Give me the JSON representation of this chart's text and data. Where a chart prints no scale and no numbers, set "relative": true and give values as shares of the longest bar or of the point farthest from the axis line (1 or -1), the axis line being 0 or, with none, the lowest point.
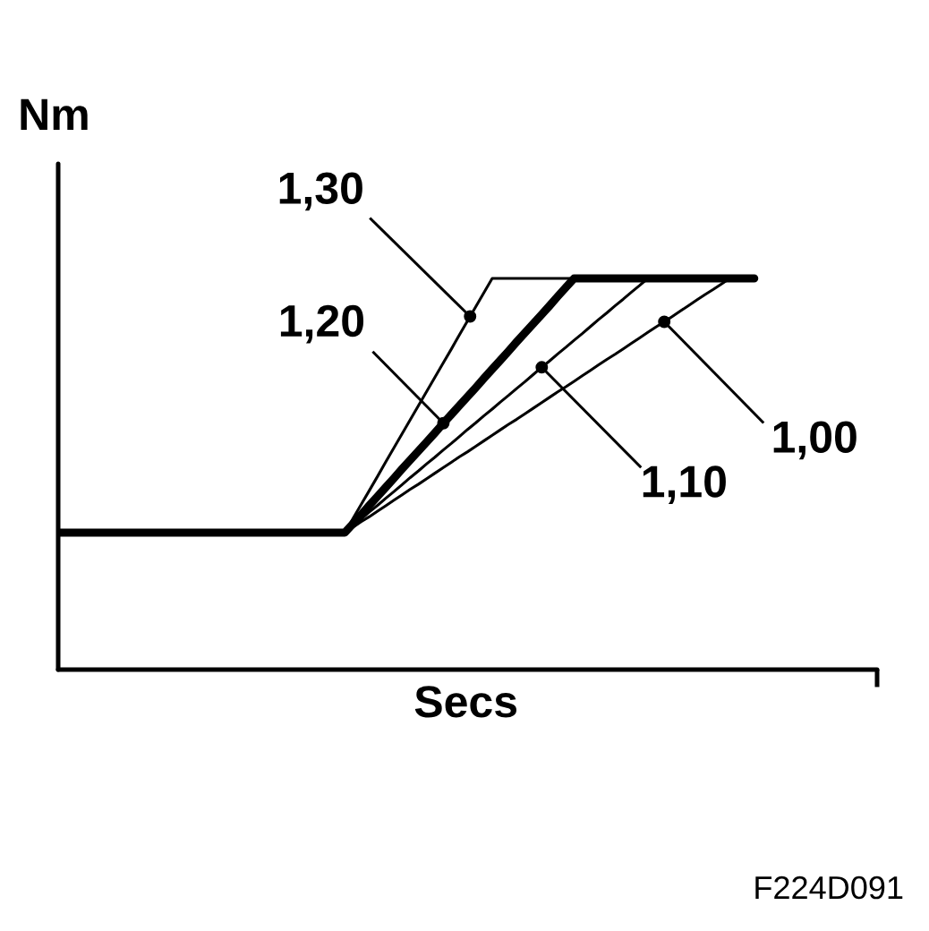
{
  "chart_data": {
    "type": "line",
    "relative": true,
    "xlabel": "Secs",
    "ylabel": "Nm",
    "line_style": "solid",
    "categories": [
      null,
      null,
      null,
      null,
      null,
      null,
      null,
      null,
      null,
      null,
      null,
      null,
      null,
      null,
      null,
      null,
      null,
      null,
      null,
      null,
      null,
      null,
      null,
      null,
      null,
      null,
      null,
      null,
      null,
      null,
      null,
      null,
      null,
      null,
      null,
      null,
      null,
      null,
      null,
      null,
      null,
      null,
      null,
      null,
      null,
      null,
      null,
      null,
      null,
      null,
      null,
      null,
      null,
      null,
      null,
      null,
      null,
      null,
      null,
      null,
      null,
      null,
      null,
      null,
      null,
      null,
      null,
      null,
      null,
      null,
      null,
      null,
      null,
      null,
      null,
      null,
      null,
      null,
      null,
      null,
      null,
      null,
      null,
      null,
      null,
      null,
      null,
      null,
      null,
      null,
      null,
      null,
      null,
      null,
      null,
      null,
      null,
      null,
      null,
      null,
      null
    ],
    "series": [
      {
        "name": "1,30",
        "color": "#000000",
        "values": [
          null,
          null,
          null,
          null,
          null,
          null,
          null,
          null,
          null,
          null,
          null,
          null,
          null,
          null,
          null,
          null,
          null,
          null,
          null,
          null,
          null,
          null,
          null,
          null,
          null,
          null,
          null,
          null,
          null,
          null,
          null,
          null,
          null,
          null,
          null,
          0.35,
          0.386,
          0.422,
          0.458,
          0.494,
          0.531,
          0.567,
          0.603,
          0.639,
          0.675,
          0.711,
          0.747,
          0.783,
          0.819,
          0.856,
          0.892,
          0.928,
          0.964,
          1,
          1,
          1,
          1,
          1,
          1,
          1,
          1,
          1,
          1,
          1,
          null,
          null,
          null,
          null,
          null,
          null,
          null,
          null,
          null,
          null,
          null,
          null,
          null,
          null,
          null,
          null,
          null,
          null,
          null,
          null,
          null,
          null,
          null,
          null,
          null,
          null,
          null,
          null,
          null,
          null,
          null,
          null,
          null,
          null,
          null,
          null,
          null
        ]
      },
      {
        "name": "1,20",
        "color": "#000000",
        "values": [
          0.35,
          0.35,
          0.35,
          0.35,
          0.35,
          0.35,
          0.35,
          0.35,
          0.35,
          0.35,
          0.35,
          0.35,
          0.35,
          0.35,
          0.35,
          0.35,
          0.35,
          0.35,
          0.35,
          0.35,
          0.35,
          0.35,
          0.35,
          0.35,
          0.35,
          0.35,
          0.35,
          0.35,
          0.35,
          0.35,
          0.35,
          0.35,
          0.35,
          0.35,
          0.35,
          0.35,
          0.373,
          0.396,
          0.42,
          0.443,
          0.466,
          0.489,
          0.513,
          0.536,
          0.559,
          0.582,
          0.605,
          0.629,
          0.652,
          0.675,
          0.698,
          0.721,
          0.745,
          0.768,
          0.791,
          0.814,
          0.838,
          0.861,
          0.884,
          0.907,
          0.93,
          0.954,
          0.977,
          1,
          1,
          1,
          1,
          1,
          1,
          1,
          1,
          1,
          1,
          1,
          1,
          1,
          1,
          1,
          1,
          1,
          1,
          1,
          1,
          1,
          1,
          1,
          null,
          null,
          null,
          null,
          null,
          null,
          null,
          null,
          null,
          null,
          null,
          null,
          null,
          null,
          null
        ]
      },
      {
        "name": "1,10",
        "color": "#000000",
        "values": [
          null,
          null,
          null,
          null,
          null,
          null,
          null,
          null,
          null,
          null,
          null,
          null,
          null,
          null,
          null,
          null,
          null,
          null,
          null,
          null,
          null,
          null,
          null,
          null,
          null,
          null,
          null,
          null,
          null,
          null,
          null,
          null,
          null,
          null,
          null,
          0.35,
          0.368,
          0.385,
          0.403,
          0.42,
          0.438,
          0.455,
          0.473,
          0.491,
          0.508,
          0.526,
          0.543,
          0.561,
          0.578,
          0.596,
          0.614,
          0.631,
          0.649,
          0.666,
          0.684,
          0.701,
          0.719,
          0.736,
          0.754,
          0.772,
          0.789,
          0.807,
          0.824,
          0.842,
          0.859,
          0.877,
          0.895,
          0.912,
          0.93,
          0.947,
          0.965,
          0.982,
          1,
          null,
          null,
          null,
          null,
          null,
          null,
          null,
          null,
          null,
          null,
          null,
          null,
          null,
          null,
          null,
          null,
          null,
          null,
          null,
          null,
          null,
          null,
          null,
          null,
          null,
          null,
          null,
          null
        ]
      },
      {
        "name": "1,00",
        "color": "#000000",
        "values": [
          null,
          null,
          null,
          null,
          null,
          null,
          null,
          null,
          null,
          null,
          null,
          null,
          null,
          null,
          null,
          null,
          null,
          null,
          null,
          null,
          null,
          null,
          null,
          null,
          null,
          null,
          null,
          null,
          null,
          null,
          null,
          null,
          null,
          null,
          null,
          0.35,
          0.364,
          0.378,
          0.391,
          0.405,
          0.419,
          0.433,
          0.447,
          0.461,
          0.474,
          0.488,
          0.502,
          0.516,
          0.53,
          0.544,
          0.557,
          0.571,
          0.585,
          0.599,
          0.613,
          0.627,
          0.64,
          0.654,
          0.668,
          0.682,
          0.696,
          0.71,
          0.723,
          0.737,
          0.751,
          0.765,
          0.779,
          0.793,
          0.806,
          0.82,
          0.834,
          0.848,
          0.862,
          0.876,
          0.889,
          0.903,
          0.917,
          0.931,
          0.945,
          0.959,
          0.972,
          0.986,
          1,
          null,
          null,
          null,
          null,
          null,
          null,
          null,
          null,
          null,
          null,
          null,
          null,
          null,
          null,
          null,
          null,
          null,
          null
        ]
      }
    ],
    "annotations": [
      "F224D091"
    ]
  }
}
